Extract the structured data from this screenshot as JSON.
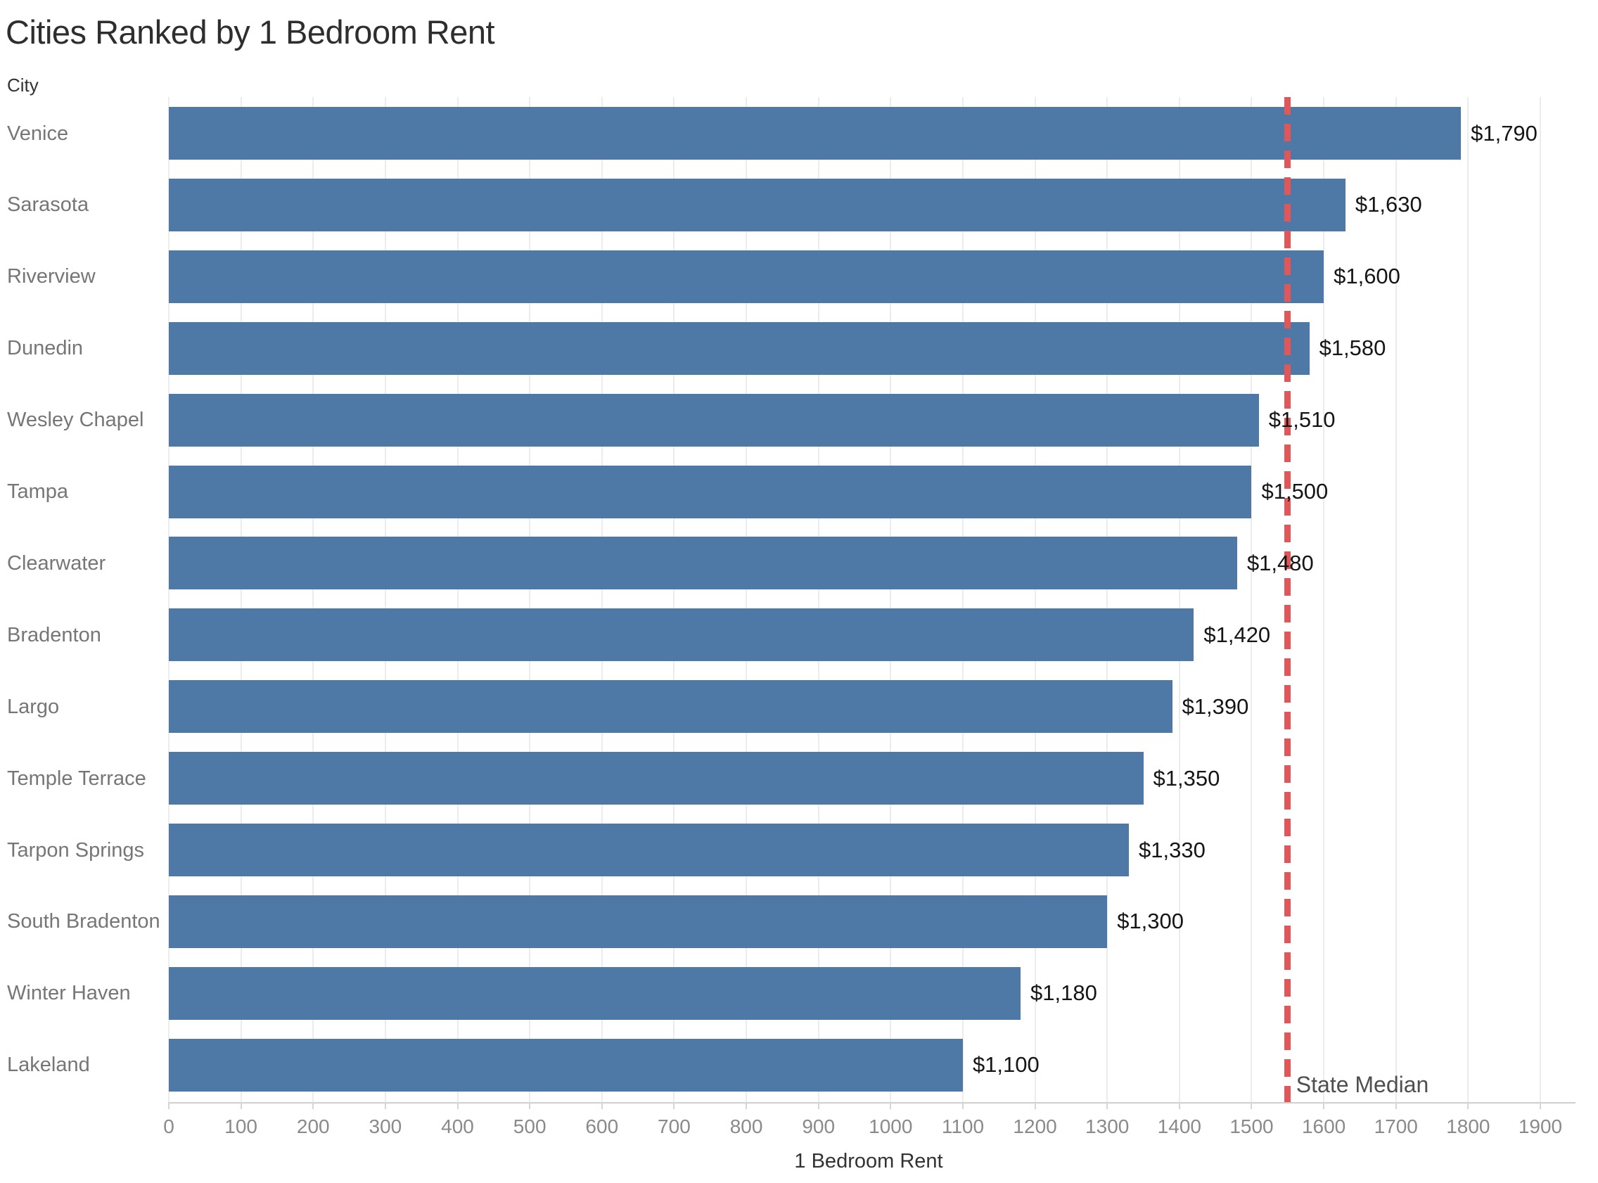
{
  "title": "Cities Ranked by 1 Bedroom Rent",
  "row_header": "City",
  "colors": {
    "bar": "#4e79a7",
    "reference_line": "#e15759",
    "gridline": "#ececec",
    "city_label": "#767676",
    "value_label": "#151515",
    "tick_label": "#8a8a8a"
  },
  "chart_data": {
    "type": "bar",
    "orientation": "horizontal",
    "title": "Cities Ranked by 1 Bedroom Rent",
    "xlabel": "1 Bedroom Rent",
    "ylabel": "City",
    "xlim": [
      0,
      1950
    ],
    "grid": true,
    "categories": [
      "Venice",
      "Sarasota",
      "Riverview",
      "Dunedin",
      "Wesley Chapel",
      "Tampa",
      "Clearwater",
      "Bradenton",
      "Largo",
      "Temple Terrace",
      "Tarpon Springs",
      "South Bradenton",
      "Winter Haven",
      "Lakeland"
    ],
    "values": [
      1790,
      1630,
      1600,
      1580,
      1510,
      1500,
      1480,
      1420,
      1390,
      1350,
      1330,
      1300,
      1180,
      1100
    ],
    "value_labels": [
      "$1,790",
      "$1,630",
      "$1,600",
      "$1,580",
      "$1,510",
      "$1,500",
      "$1,480",
      "$1,420",
      "$1,390",
      "$1,350",
      "$1,330",
      "$1,300",
      "$1,180",
      "$1,100"
    ],
    "ticks": [
      0,
      100,
      200,
      300,
      400,
      500,
      600,
      700,
      800,
      900,
      1000,
      1100,
      1200,
      1300,
      1400,
      1500,
      1600,
      1700,
      1800,
      1900
    ],
    "reference_line": {
      "value": 1550,
      "label": "State Median"
    }
  }
}
